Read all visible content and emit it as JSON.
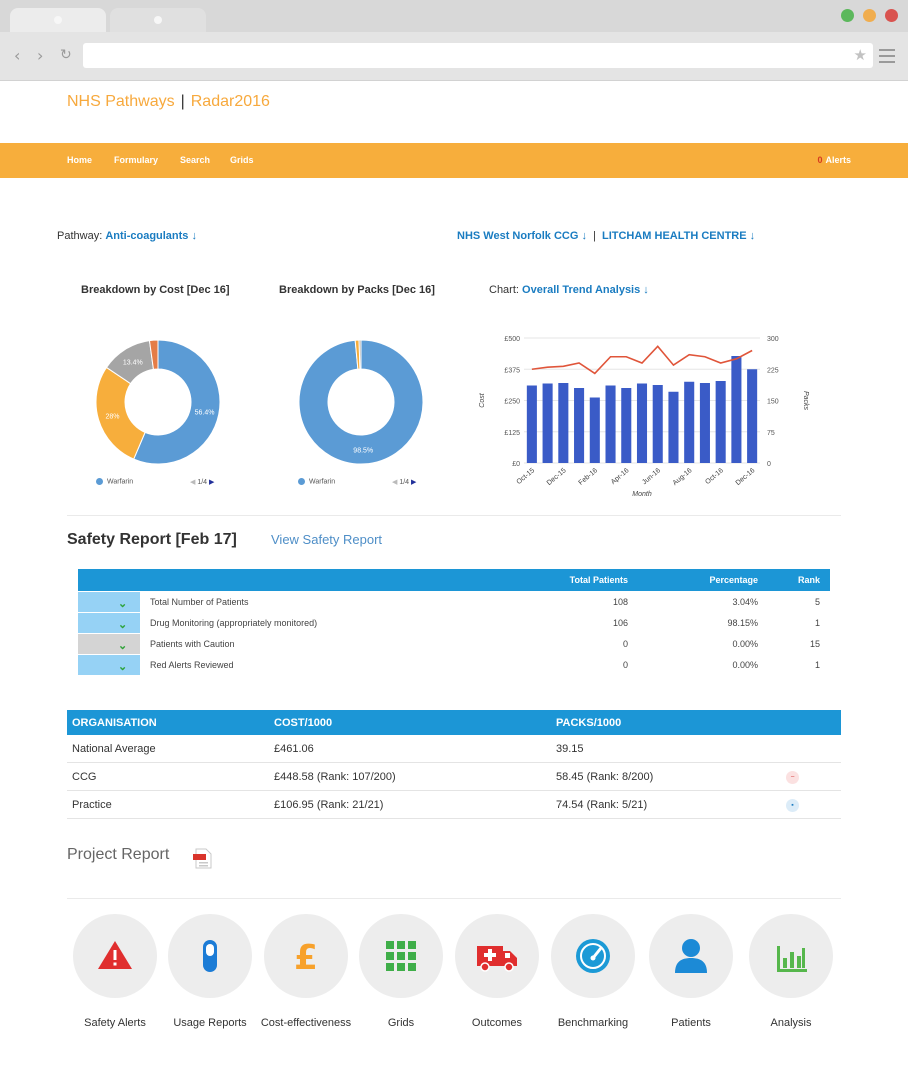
{
  "brand": {
    "left": "NHS Pathways",
    "sep": "|",
    "right": "Radar2016"
  },
  "nav": {
    "items": [
      "Home",
      "Formulary",
      "Search",
      "Grids"
    ],
    "alerts_count": "0",
    "alerts_label": "Alerts"
  },
  "filters": {
    "pathway_label": "Pathway:",
    "pathway_value": "Anti-coagulants ↓",
    "ccg": "NHS West Norfolk CCG ↓",
    "sep": "|",
    "practice": "LITCHAM HEALTH CENTRE ↓"
  },
  "donut_cost": {
    "title": "Breakdown by Cost [Dec 16]",
    "legend": "Warfarin",
    "pager": "1/4",
    "chart_data": {
      "type": "pie",
      "labels": [
        "56.4%",
        "28%",
        "13.4%",
        ""
      ],
      "values": [
        56.4,
        28,
        13.4,
        2.2
      ],
      "colors": [
        "#5b9bd5",
        "#f7ae3c",
        "#a5a5a5",
        "#e57d47"
      ]
    }
  },
  "donut_packs": {
    "title": "Breakdown by Packs [Dec 16]",
    "legend": "Warfarin",
    "pager": "1/4",
    "chart_data": {
      "type": "pie",
      "labels": [
        "98.5%",
        "",
        ""
      ],
      "values": [
        98.5,
        1.0,
        0.5
      ],
      "colors": [
        "#5b9bd5",
        "#f7ae3c",
        "#a5a5a5"
      ]
    }
  },
  "trend": {
    "label": "Chart:",
    "value": "Overall Trend Analysis ↓",
    "chart_data": {
      "type": "bar",
      "categories": [
        "Oct-15",
        "Nov-15",
        "Dec-15",
        "Jan-16",
        "Feb-16",
        "Mar-16",
        "Apr-16",
        "May-16",
        "Jun-16",
        "Jul-16",
        "Aug-16",
        "Sep-16",
        "Oct-16",
        "Nov-16",
        "Dec-16"
      ],
      "x_tick_labels": [
        "Oct-15",
        "Dec-15",
        "Feb-16",
        "Apr-16",
        "Jun-16",
        "Aug-16",
        "Oct-16",
        "Dec-16"
      ],
      "series": [
        {
          "values": [
            310,
            318,
            320,
            300,
            262,
            310,
            300,
            318,
            312,
            285,
            325,
            320,
            328,
            428,
            375
          ]
        },
        {
          "values": [
            225,
            230,
            232,
            240,
            215,
            255,
            255,
            240,
            280,
            235,
            260,
            255,
            240,
            250,
            270
          ]
        }
      ],
      "xlabel": "Month",
      "ylabel": "Cost",
      "y2label": "Packs",
      "y_ticks": [
        "£0",
        "£125",
        "£250",
        "£375",
        "£500"
      ],
      "y2_ticks": [
        "0",
        "75",
        "150",
        "225",
        "300"
      ],
      "ylim": [
        0,
        500
      ],
      "y2lim": [
        0,
        300
      ],
      "bar_color": "#3a5bc7",
      "line_color": "#e0553a"
    }
  },
  "safety": {
    "title": "Safety Report [Feb 17]",
    "view_link": "View Safety Report",
    "headers": {
      "total": "Total Patients",
      "pct": "Percentage",
      "rank": "Rank"
    },
    "rows": [
      {
        "label": "Total Number of Patients",
        "total": "108",
        "pct": "3.04%",
        "rank": "5"
      },
      {
        "label": "Drug Monitoring (appropriately monitored)",
        "total": "106",
        "pct": "98.15%",
        "rank": "1"
      },
      {
        "label": "Patients with Caution",
        "total": "0",
        "pct": "0.00%",
        "rank": "15"
      },
      {
        "label": "Red Alerts Reviewed",
        "total": "0",
        "pct": "0.00%",
        "rank": "1"
      }
    ]
  },
  "org": {
    "headers": {
      "org": "ORGANISATION",
      "cost": "COST/1000",
      "packs": "PACKS/1000"
    },
    "rows": [
      {
        "org": "National Average",
        "cost": "£461.06",
        "packs": "39.15"
      },
      {
        "org": "CCG",
        "cost": "£448.58 (Rank: 107/200)",
        "packs": "58.45 (Rank: 8/200)"
      },
      {
        "org": "Practice",
        "cost": "£106.95 (Rank: 21/21)",
        "packs": "74.54 (Rank: 5/21)"
      }
    ]
  },
  "project_report": "Project Report",
  "features": [
    "Safety Alerts",
    "Usage Reports",
    "Cost-effectiveness",
    "Grids",
    "Outcomes",
    "Benchmarking",
    "Patients",
    "Analysis"
  ],
  "feature_icons": [
    "warning-icon",
    "capsule-icon",
    "pound-icon",
    "grid-icon",
    "ambulance-icon",
    "gauge-icon",
    "person-icon",
    "bar-chart-icon"
  ]
}
